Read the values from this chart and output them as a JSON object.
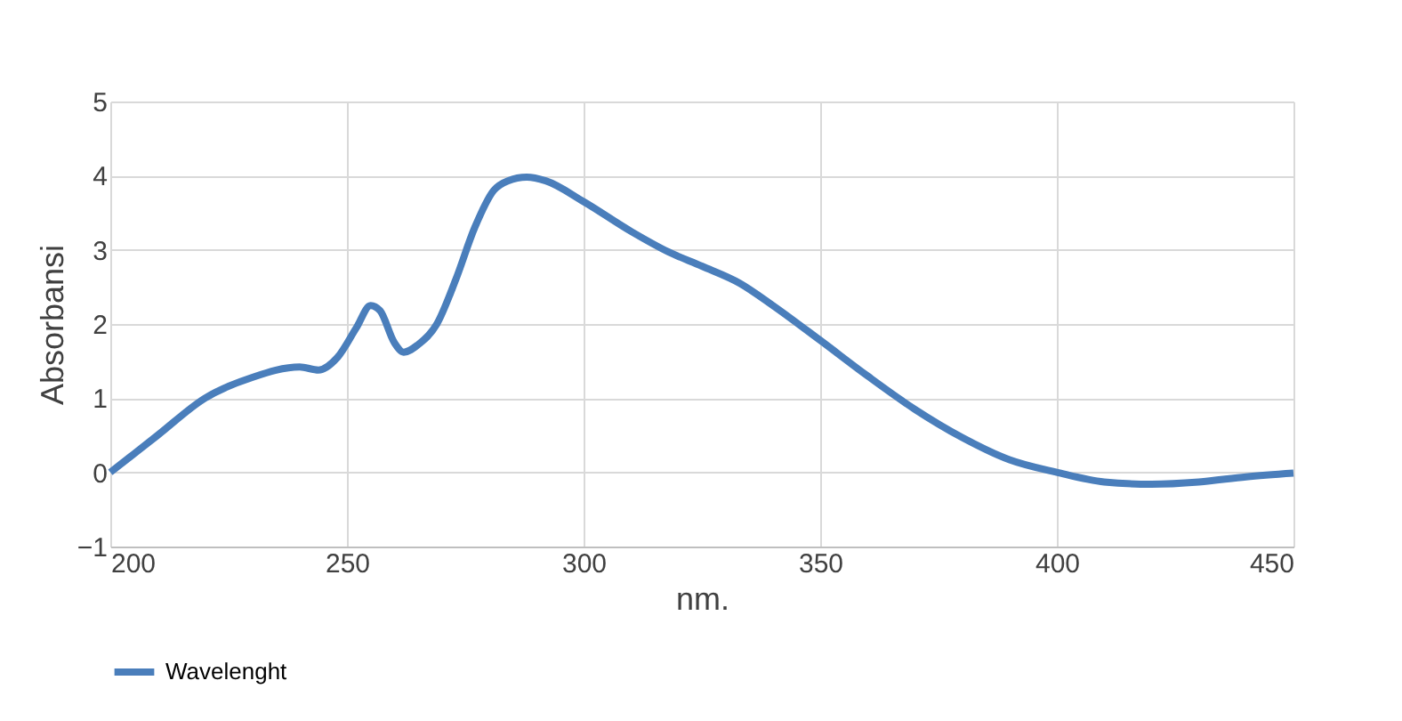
{
  "chart_data": {
    "type": "line",
    "xlabel": "nm.",
    "ylabel": "Absorbansi",
    "xlim": [
      200,
      450
    ],
    "xticks": [
      200,
      250,
      300,
      350,
      400,
      450
    ],
    "ylim": [
      -1,
      5
    ],
    "yticks": [
      -1,
      0,
      1,
      2,
      3,
      4,
      5
    ],
    "grid": true,
    "legend": "bottom",
    "line_style": "solid",
    "marker": "none",
    "series": [
      {
        "name": "Wavelenght",
        "color": "#4a7ebb",
        "x": [
          200,
          210,
          220,
          230,
          240,
          244,
          248,
          252,
          255,
          257,
          260,
          262,
          265,
          269,
          273,
          277,
          281,
          284,
          288,
          292,
          300,
          310,
          318,
          325,
          333,
          340,
          350,
          360,
          370,
          380,
          390,
          400,
          410,
          420,
          430,
          440,
          450
        ],
        "values": [
          0,
          0.5,
          1.0,
          1.28,
          1.42,
          1.38,
          1.55,
          1.95,
          2.25,
          2.18,
          1.75,
          1.62,
          1.72,
          2.0,
          2.6,
          3.3,
          3.8,
          3.93,
          3.98,
          3.93,
          3.65,
          3.25,
          2.97,
          2.78,
          2.55,
          2.25,
          1.78,
          1.3,
          0.85,
          0.47,
          0.17,
          0.0,
          -0.13,
          -0.16,
          -0.13,
          -0.06,
          -0.01
        ]
      }
    ]
  }
}
